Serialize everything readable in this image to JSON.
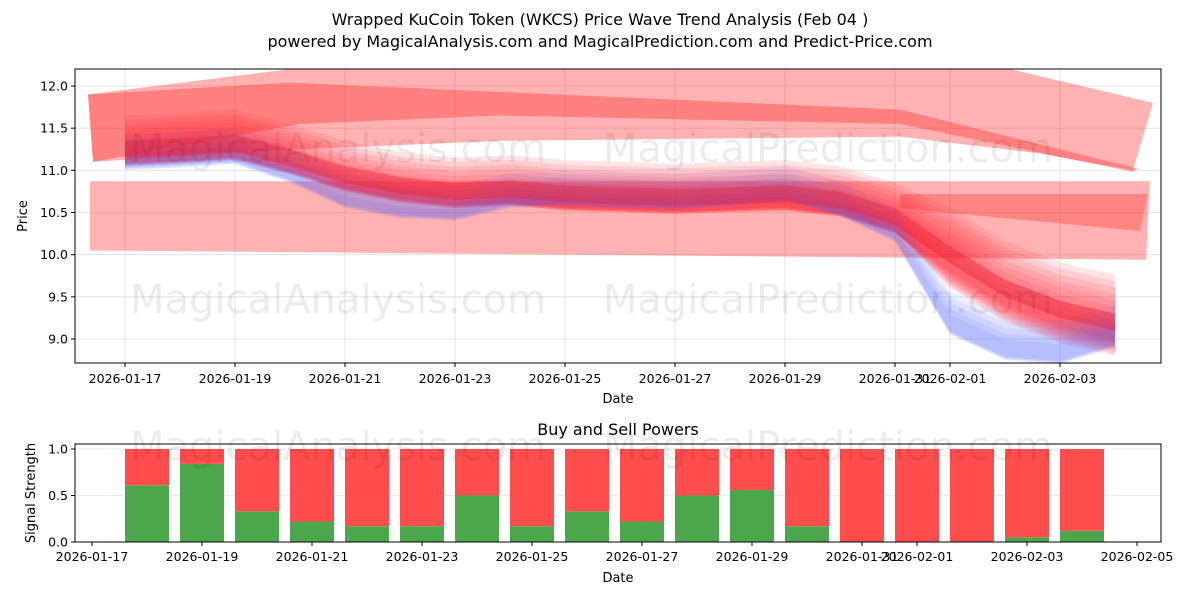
{
  "header": {
    "title": "Wrapped KuCoin Token (WKCS) Price Wave Trend Analysis (Feb 04 )",
    "subtitle": "powered by MagicalAnalysis.com and MagicalPrediction.com and Predict-Price.com"
  },
  "watermarks": [
    "MagicalAnalysis.com",
    "MagicalPrediction.com"
  ],
  "colors": {
    "sell_red": "#ff4d4d",
    "buy_green": "#4ca64c",
    "band_red": "#ff0000",
    "band_blue": "#3344ff"
  },
  "chart_data": [
    {
      "type": "area",
      "title": "Wrapped KuCoin Token (WKCS) Price Wave Trend Analysis (Feb 04 )",
      "xlabel": "Date",
      "ylabel": "Price",
      "ylim": [
        8.72,
        12.2
      ],
      "yticks": [
        "9.0",
        "9.5",
        "10.0",
        "10.5",
        "11.0",
        "11.5",
        "12.0"
      ],
      "xticks": [
        "2026-01-17",
        "2026-01-19",
        "2026-01-21",
        "2026-01-23",
        "2026-01-25",
        "2026-01-27",
        "2026-01-29",
        "2026-01-31",
        "2026-02-01",
        "2026-02-03"
      ],
      "grid": true,
      "x": [
        "2026-01-17",
        "2026-01-18",
        "2026-01-19",
        "2026-01-20",
        "2026-01-21",
        "2026-01-22",
        "2026-01-23",
        "2026-01-24",
        "2026-01-25",
        "2026-01-26",
        "2026-01-27",
        "2026-01-28",
        "2026-01-29",
        "2026-01-30",
        "2026-01-31",
        "2026-02-01",
        "2026-02-02",
        "2026-02-03",
        "2026-02-04"
      ],
      "series": [
        {
          "name": "price_center_red",
          "values": [
            11.25,
            11.28,
            11.32,
            11.15,
            10.95,
            10.82,
            10.75,
            10.78,
            10.72,
            10.7,
            10.68,
            10.7,
            10.72,
            10.65,
            10.45,
            10.0,
            9.6,
            9.35,
            9.2
          ]
        },
        {
          "name": "price_center_blue",
          "values": [
            11.15,
            11.18,
            11.22,
            11.0,
            10.7,
            10.58,
            10.55,
            10.7,
            10.72,
            10.7,
            10.68,
            10.72,
            10.78,
            10.6,
            10.3,
            9.3,
            9.0,
            8.95,
            9.15
          ]
        },
        {
          "name": "upper_wide_band_top",
          "values": [
            11.9,
            11.95,
            12.0,
            12.05,
            12.2,
            12.2,
            12.2,
            12.2,
            12.2,
            12.2,
            12.2,
            12.2,
            12.2,
            12.2,
            12.2,
            12.2,
            12.1,
            11.95,
            11.8
          ]
        },
        {
          "name": "upper_wide_band_bottom",
          "values": [
            11.1,
            11.1,
            11.15,
            11.2,
            11.25,
            11.28,
            11.3,
            11.32,
            11.35,
            11.35,
            11.38,
            11.4,
            11.4,
            11.4,
            11.4,
            11.3,
            11.2,
            11.1,
            11.05
          ]
        },
        {
          "name": "lower_wide_band_top",
          "values": [
            10.87,
            10.87,
            10.87,
            10.87,
            10.86,
            10.86,
            10.86,
            10.86,
            10.86,
            10.86,
            10.86,
            10.86,
            10.86,
            10.86,
            10.86,
            10.8,
            10.77,
            10.75,
            10.74
          ]
        },
        {
          "name": "lower_wide_band_bottom",
          "values": [
            10.04,
            10.03,
            10.03,
            10.02,
            10.02,
            10.01,
            10.01,
            10.01,
            10.01,
            10.0,
            10.0,
            10.0,
            10.0,
            10.0,
            10.0,
            9.99,
            9.97,
            9.95,
            9.94
          ]
        }
      ]
    },
    {
      "type": "bar",
      "title": "Buy and Sell Powers",
      "xlabel": "Date",
      "ylabel": "Signal Strength",
      "ylim": [
        0,
        1.05
      ],
      "yticks": [
        "0.0",
        "0.5",
        "1.0"
      ],
      "xticks": [
        "2026-01-17",
        "2026-01-19",
        "2026-01-21",
        "2026-01-23",
        "2026-01-25",
        "2026-01-27",
        "2026-01-29",
        "2026-01-31",
        "2026-02-01",
        "2026-02-03",
        "2026-02-05"
      ],
      "categories": [
        "2026-01-18",
        "2026-01-19",
        "2026-01-20",
        "2026-01-21",
        "2026-01-22",
        "2026-01-23",
        "2026-01-24",
        "2026-01-25",
        "2026-01-26",
        "2026-01-27",
        "2026-01-28",
        "2026-01-29",
        "2026-01-30",
        "2026-01-31",
        "2026-02-01",
        "2026-02-02",
        "2026-02-03",
        "2026-02-04"
      ],
      "series": [
        {
          "name": "Buy",
          "color": "#4ca64c",
          "values": [
            0.61,
            0.84,
            0.33,
            0.22,
            0.17,
            0.17,
            0.5,
            0.17,
            0.33,
            0.22,
            0.5,
            0.56,
            0.17,
            0.0,
            0.0,
            0.0,
            0.05,
            0.12
          ]
        },
        {
          "name": "Sell",
          "color": "#ff4d4d",
          "values": [
            0.39,
            0.16,
            0.67,
            0.78,
            0.83,
            0.83,
            0.5,
            0.83,
            0.67,
            0.78,
            0.5,
            0.44,
            0.83,
            1.0,
            1.0,
            1.0,
            0.95,
            0.88
          ]
        }
      ]
    }
  ]
}
